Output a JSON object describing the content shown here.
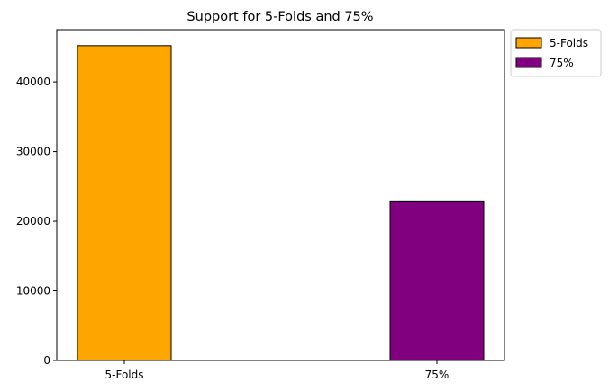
{
  "chart_data": {
    "type": "bar",
    "title": "Support for 5-Folds and 75%",
    "xlabel": "",
    "ylabel": "",
    "categories": [
      "5-Folds",
      "75%"
    ],
    "values": [
      45200,
      22800
    ],
    "colors": [
      "#FFA500",
      "#800080"
    ],
    "edge_color": "#000000",
    "ylim": [
      0,
      47500
    ],
    "yticks": [
      0,
      10000,
      20000,
      30000,
      40000
    ],
    "ytick_labels": [
      "0",
      "10000",
      "20000",
      "30000",
      "40000"
    ],
    "grid": false,
    "legend": {
      "placement": "outside-upper-right",
      "entries": [
        {
          "label": "5-Folds",
          "color": "#FFA500"
        },
        {
          "label": "75%",
          "color": "#800080"
        }
      ]
    }
  }
}
